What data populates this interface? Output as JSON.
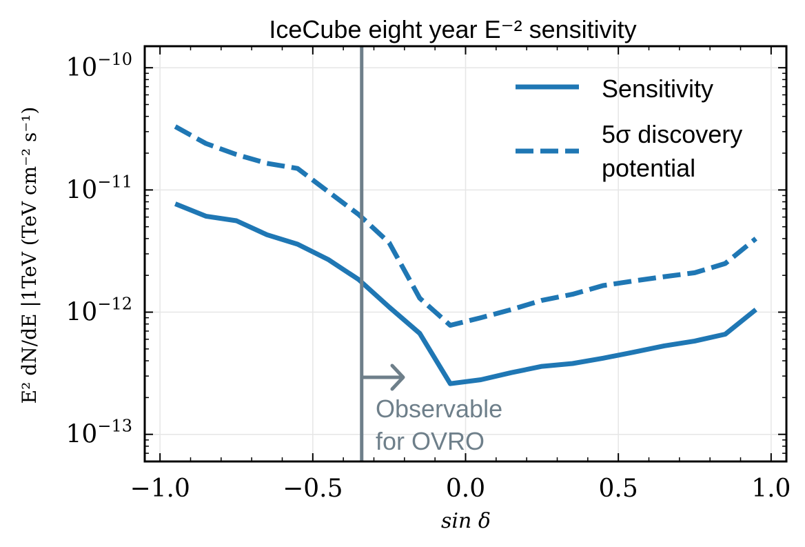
{
  "chart_data": {
    "type": "line",
    "title": "IceCube eight year E⁻² sensitivity",
    "xlabel": "sin δ",
    "ylabel": "E² dN/dE |1TeV (TeV cm⁻² s⁻¹)",
    "xlim": [
      -1.05,
      1.05
    ],
    "ylim": [
      6e-14,
      1.5e-10
    ],
    "yscale": "log",
    "grid": true,
    "legend_position": "top-right",
    "x_ticks": [
      {
        "value": -1.0,
        "label": "−1.0"
      },
      {
        "value": -0.5,
        "label": "−0.5"
      },
      {
        "value": 0.0,
        "label": "0.0"
      },
      {
        "value": 0.5,
        "label": "0.5"
      },
      {
        "value": 1.0,
        "label": "1.0"
      }
    ],
    "y_ticks": [
      {
        "value": 1e-10,
        "exp": "−10"
      },
      {
        "value": 1e-11,
        "exp": "−11"
      },
      {
        "value": 1e-12,
        "exp": "−12"
      },
      {
        "value": 1e-13,
        "exp": "−13"
      }
    ],
    "series": [
      {
        "name": "Sensitivity",
        "style": "solid",
        "color": "#1f77b4",
        "x": [
          -0.95,
          -0.85,
          -0.75,
          -0.65,
          -0.55,
          -0.45,
          -0.35,
          -0.25,
          -0.15,
          -0.05,
          0.05,
          0.15,
          0.25,
          0.35,
          0.45,
          0.55,
          0.65,
          0.75,
          0.85,
          0.95
        ],
        "y": [
          7.7e-12,
          6.1e-12,
          5.6e-12,
          4.3e-12,
          3.6e-12,
          2.7e-12,
          1.85e-12,
          1.1e-12,
          6.7e-13,
          2.6e-13,
          2.8e-13,
          3.2e-13,
          3.6e-13,
          3.8e-13,
          4.2e-13,
          4.7e-13,
          5.3e-13,
          5.8e-13,
          6.6e-13,
          1.05e-12
        ]
      },
      {
        "name": "5σ discovery potential",
        "style": "dashed",
        "color": "#1f77b4",
        "x": [
          -0.95,
          -0.85,
          -0.75,
          -0.65,
          -0.55,
          -0.45,
          -0.35,
          -0.25,
          -0.15,
          -0.05,
          0.05,
          0.15,
          0.25,
          0.35,
          0.45,
          0.55,
          0.65,
          0.75,
          0.85,
          0.95
        ],
        "y": [
          3.3e-11,
          2.4e-11,
          1.95e-11,
          1.65e-11,
          1.5e-11,
          9.7e-12,
          6.3e-12,
          3.7e-12,
          1.3e-12,
          7.8e-13,
          9e-13,
          1.05e-12,
          1.25e-12,
          1.4e-12,
          1.65e-12,
          1.8e-12,
          1.95e-12,
          2.1e-12,
          2.5e-12,
          4e-12
        ]
      }
    ],
    "legend": {
      "line1": "Sensitivity",
      "line2a": "5σ discovery",
      "line2b": "potential"
    },
    "annotation": {
      "vline_x": -0.34,
      "line1": "Observable",
      "line2": "for OVRO",
      "color": "#6e7f8a"
    }
  }
}
